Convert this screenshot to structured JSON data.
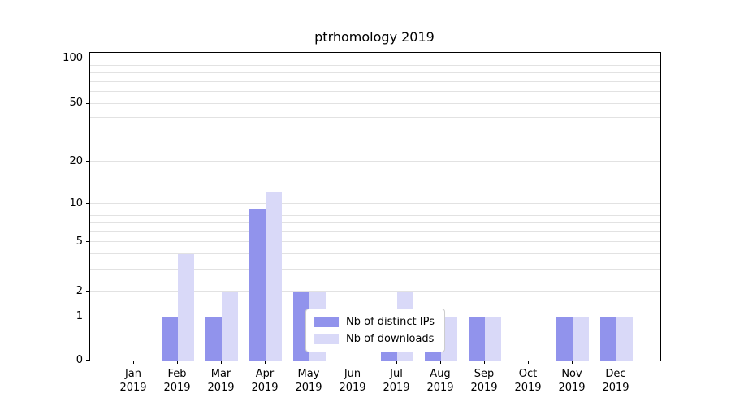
{
  "title": "ptrhomology 2019",
  "chart_data": {
    "type": "bar",
    "title": "ptrhomology 2019",
    "categories": [
      "Jan",
      "Feb",
      "Mar",
      "Apr",
      "May",
      "Jun",
      "Jul",
      "Aug",
      "Sep",
      "Oct",
      "Nov",
      "Dec"
    ],
    "category_year": "2019",
    "series": [
      {
        "name": "Nb of distinct IPs",
        "color": "#9193ec",
        "values": [
          0,
          1,
          1,
          9,
          2,
          0,
          1,
          1,
          1,
          0,
          1,
          1
        ]
      },
      {
        "name": "Nb of downloads",
        "color": "#d9d9f8",
        "values": [
          0,
          4,
          2,
          12,
          2,
          0,
          2,
          1,
          1,
          0,
          1,
          1
        ]
      }
    ],
    "y_ticks": [
      0,
      1,
      2,
      5,
      10,
      20,
      50,
      100
    ],
    "y_scale": "symlog",
    "y_scale_anchors": [
      [
        0,
        0
      ],
      [
        1,
        0.14
      ],
      [
        2,
        0.224
      ],
      [
        5,
        0.385
      ],
      [
        10,
        0.509
      ],
      [
        20,
        0.646
      ],
      [
        50,
        0.834
      ],
      [
        100,
        0.981
      ]
    ],
    "grid_values": [
      1,
      2,
      3,
      4,
      5,
      6,
      7,
      8,
      9,
      10,
      20,
      30,
      40,
      50,
      60,
      70,
      80,
      90,
      100
    ],
    "grid_on": true,
    "legend_position": "lower center inside",
    "xlabel": "",
    "ylabel": ""
  },
  "colors": {
    "distinct_ips": "#9193ec",
    "downloads": "#d9d9f8",
    "grid": "#e2e2e2",
    "axis": "#000000",
    "legend_border": "#cccccc"
  }
}
